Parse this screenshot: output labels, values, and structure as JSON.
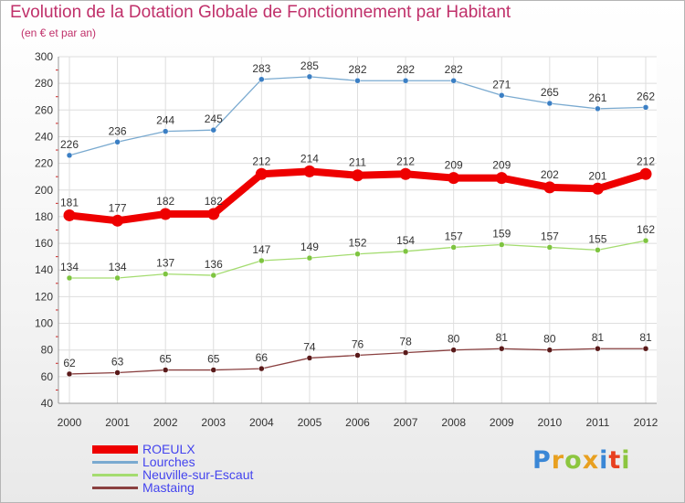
{
  "title": "Evolution de la Dotation Globale de Fonctionnement par Habitant",
  "subtitle": "(en € et par an)",
  "logo": {
    "letters": [
      "P",
      "r",
      "o",
      "x",
      "i",
      "t",
      "i"
    ],
    "colors": [
      "#3a87d6",
      "#e8a020",
      "#8cc63f",
      "#e8a020",
      "#3a87d6",
      "#e84020",
      "#8cc63f"
    ]
  },
  "chart_data": {
    "type": "line",
    "x": [
      2000,
      2001,
      2002,
      2003,
      2004,
      2005,
      2006,
      2007,
      2008,
      2009,
      2010,
      2011,
      2012
    ],
    "x_tick_labels": [
      "2000",
      "2001",
      "2002",
      "2003",
      "2004",
      "2005",
      "2006",
      "2007",
      "2008",
      "2009",
      "2010",
      "2011",
      "2012"
    ],
    "ylim": [
      40,
      300
    ],
    "y_ticks": [
      40,
      60,
      80,
      100,
      120,
      140,
      160,
      180,
      200,
      220,
      240,
      260,
      280,
      300
    ],
    "grid": true,
    "legend_position": "bottom-left",
    "series": [
      {
        "name": "Lourches",
        "values": [
          226,
          236,
          244,
          245,
          283,
          285,
          282,
          282,
          282,
          271,
          265,
          261,
          262
        ],
        "color": "#7aaad0",
        "marker": "#3b7fc4",
        "width": 1.3,
        "legend_width": 3,
        "highlight": false
      },
      {
        "name": "ROEULX",
        "values": [
          181,
          177,
          182,
          182,
          212,
          214,
          211,
          212,
          209,
          209,
          202,
          201,
          212
        ],
        "color": "#ee0000",
        "marker": "#ee0000",
        "width": 8,
        "legend_width": 9,
        "highlight": true
      },
      {
        "name": "Neuville-sur-Escaut",
        "values": [
          134,
          134,
          137,
          136,
          147,
          149,
          152,
          154,
          157,
          159,
          157,
          155,
          162
        ],
        "color": "#a4dc70",
        "marker": "#7ec440",
        "width": 1.3,
        "legend_width": 3,
        "highlight": false
      },
      {
        "name": "Mastaing",
        "values": [
          62,
          63,
          65,
          65,
          66,
          74,
          76,
          78,
          80,
          81,
          80,
          81,
          81
        ],
        "color": "#8a4040",
        "marker": "#5a1a1a",
        "width": 1.3,
        "legend_width": 3,
        "highlight": false
      }
    ],
    "legend_order": [
      "ROEULX",
      "Lourches",
      "Neuville-sur-Escaut",
      "Mastaing"
    ]
  }
}
